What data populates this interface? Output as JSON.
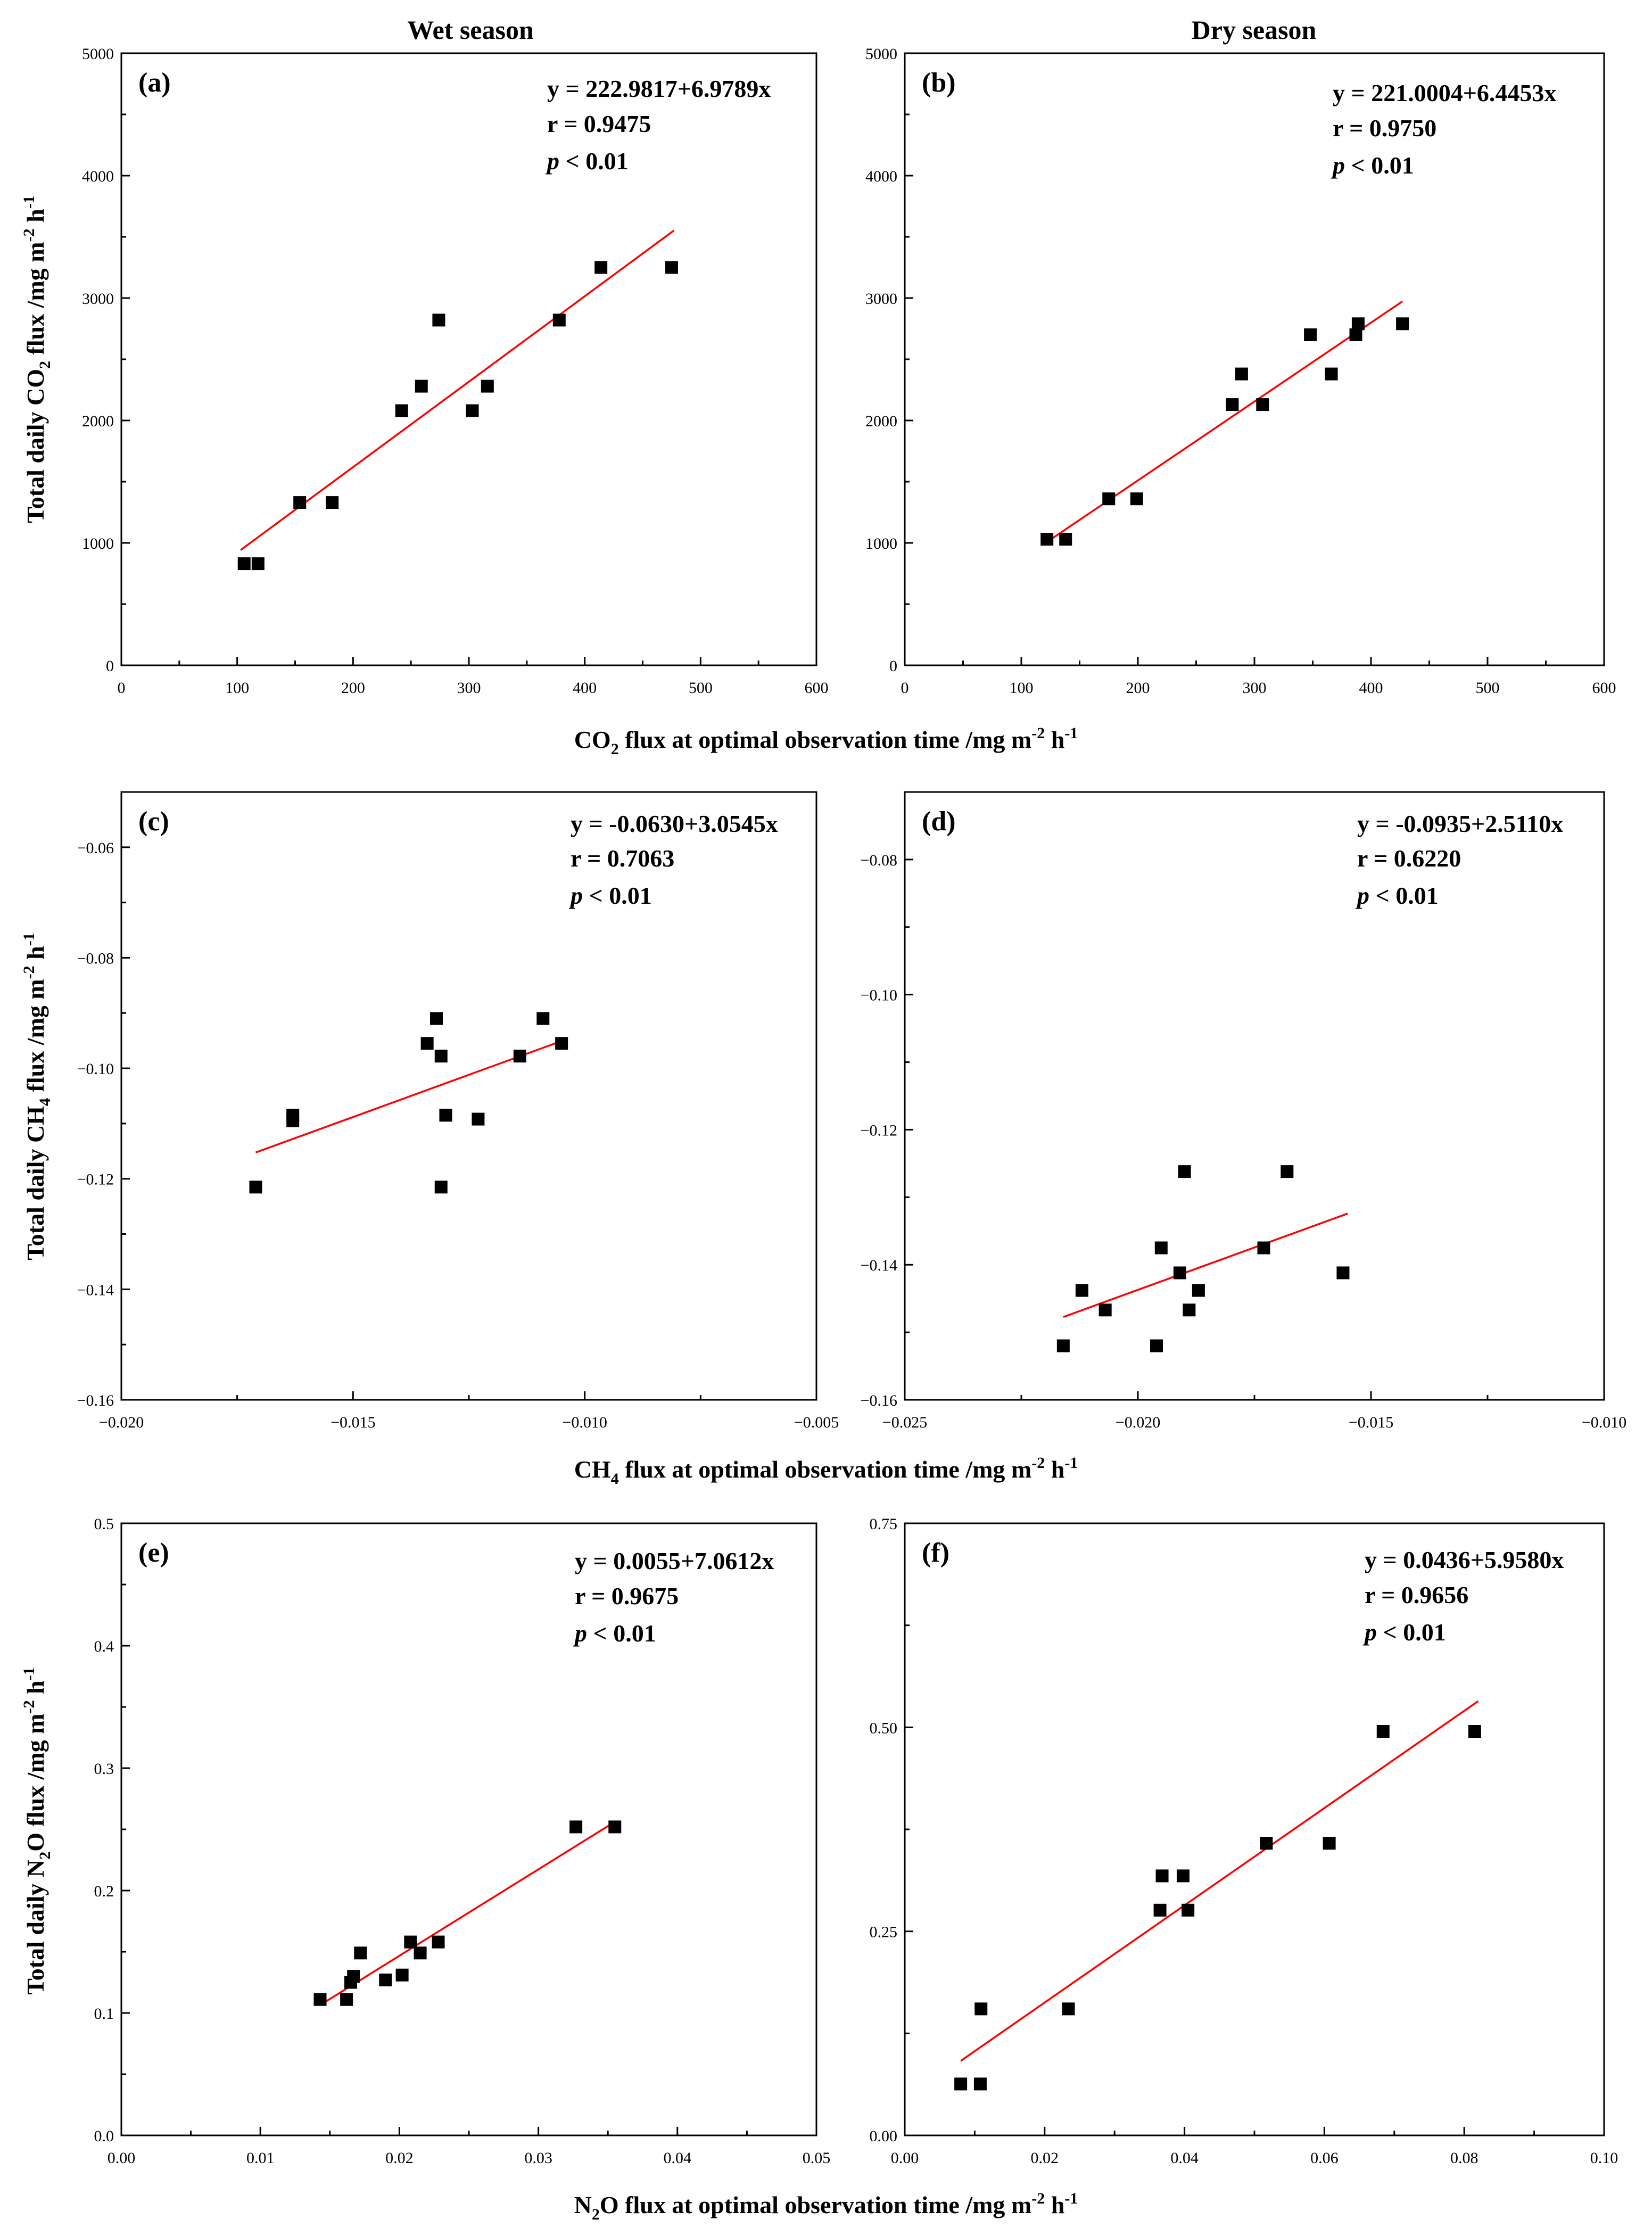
{
  "season_labels": [
    "Wet season",
    "Dry season"
  ],
  "row_xlabels": [
    {
      "pre": "CO",
      "sub": "2",
      "post": " flux at optimal observation time /mg m",
      "sup1": "-2",
      "mid": " h",
      "sup2": "-1"
    },
    {
      "pre": "CH",
      "sub": "4",
      "post": " flux at optimal observation time /mg m",
      "sup1": "-2",
      "mid": " h",
      "sup2": "-1"
    },
    {
      "pre": "N",
      "sub": "2",
      "post": "O flux at optimal observation time /mg m",
      "sup1": "-2",
      "mid": " h",
      "sup2": "-1"
    }
  ],
  "row_ylabels": [
    {
      "pre": "Total daily CO",
      "sub": "2",
      "post": " flux /mg m",
      "sup1": "-2",
      "mid": " h",
      "sup2": "-1"
    },
    {
      "pre": "Total daily CH",
      "sub": "4",
      "post": " flux /mg m",
      "sup1": "-2",
      "mid": " h",
      "sup2": "-1"
    },
    {
      "pre": "Total daily N",
      "sub": "2",
      "post": "O flux /mg m",
      "sup1": "-2",
      "mid": " h",
      "sup2": "-1"
    }
  ],
  "colors": {
    "points": "#000000",
    "fit": "#ff0000",
    "frame": "#000000"
  },
  "chart_data": [
    {
      "type": "scatter",
      "panel": "(a)",
      "season": "Wet season",
      "xlim": [
        0,
        600
      ],
      "ylim": [
        0,
        5000
      ],
      "xticks": [
        0,
        100,
        200,
        300,
        400,
        500,
        600
      ],
      "yticks": [
        0,
        1000,
        2000,
        3000,
        4000,
        5000
      ],
      "xtick_labels": [
        "0",
        "100",
        "200",
        "300",
        "400",
        "500",
        "600"
      ],
      "ytick_labels": [
        "0",
        "1000",
        "2000",
        "3000",
        "4000",
        "5000"
      ],
      "points": [
        [
          106,
          830
        ],
        [
          118,
          830
        ],
        [
          154,
          1330
        ],
        [
          182,
          1330
        ],
        [
          242,
          2080
        ],
        [
          259,
          2280
        ],
        [
          274,
          2820
        ],
        [
          303,
          2080
        ],
        [
          316,
          2280
        ],
        [
          378,
          2820
        ],
        [
          414,
          3250
        ],
        [
          475,
          3250
        ]
      ],
      "fit": {
        "intercept": 222.9817,
        "slope": 6.9789,
        "x_range": [
          103,
          477
        ]
      },
      "equation": "y = 222.9817+6.9789x",
      "r_text": "r = 0.9475",
      "p_italic": "p",
      "p_rest": " < 0.01"
    },
    {
      "type": "scatter",
      "panel": "(b)",
      "season": "Dry season",
      "xlim": [
        0,
        600
      ],
      "ylim": [
        0,
        5000
      ],
      "xticks": [
        0,
        100,
        200,
        300,
        400,
        500,
        600
      ],
      "yticks": [
        0,
        1000,
        2000,
        3000,
        4000,
        5000
      ],
      "xtick_labels": [
        "0",
        "100",
        "200",
        "300",
        "400",
        "500",
        "600"
      ],
      "ytick_labels": [
        "0",
        "1000",
        "2000",
        "3000",
        "4000",
        "5000"
      ],
      "points": [
        [
          122,
          1030
        ],
        [
          138,
          1030
        ],
        [
          175,
          1360
        ],
        [
          199,
          1360
        ],
        [
          281,
          2130
        ],
        [
          289,
          2380
        ],
        [
          307,
          2130
        ],
        [
          348,
          2700
        ],
        [
          366,
          2380
        ],
        [
          387,
          2700
        ],
        [
          389,
          2790
        ],
        [
          427,
          2790
        ]
      ],
      "fit": {
        "intercept": 221.0004,
        "slope": 6.4453,
        "x_range": [
          118,
          427
        ]
      },
      "equation": "y = 221.0004+6.4453x",
      "r_text": "r = 0.9750",
      "p_italic": "p",
      "p_rest": " < 0.01"
    },
    {
      "type": "scatter",
      "panel": "(c)",
      "season": "Wet season",
      "xlim": [
        -0.02,
        -0.005
      ],
      "ylim": [
        -0.16,
        -0.05
      ],
      "xticks": [
        -0.02,
        -0.015,
        -0.01,
        -0.005
      ],
      "yticks": [
        -0.16,
        -0.14,
        -0.12,
        -0.1,
        -0.08,
        -0.06
      ],
      "xtick_labels": [
        "−0.020",
        "−0.015",
        "−0.010",
        "−0.005"
      ],
      "ytick_labels": [
        "−0.16",
        "−0.14",
        "−0.12",
        "−0.10",
        "−0.08",
        "−0.06"
      ],
      "points": [
        [
          -0.0171,
          -0.1215
        ],
        [
          -0.0163,
          -0.1085
        ],
        [
          -0.0163,
          -0.1095
        ],
        [
          -0.0134,
          -0.0955
        ],
        [
          -0.0132,
          -0.091
        ],
        [
          -0.0131,
          -0.0978
        ],
        [
          -0.0131,
          -0.1215
        ],
        [
          -0.013,
          -0.1085
        ],
        [
          -0.0123,
          -0.1092
        ],
        [
          -0.0114,
          -0.0978
        ],
        [
          -0.0109,
          -0.091
        ],
        [
          -0.0105,
          -0.0955
        ]
      ],
      "fit": {
        "intercept": -0.063,
        "slope": 3.0545,
        "x_range": [
          -0.0171,
          -0.0105
        ]
      },
      "equation": "y = -0.0630+3.0545x",
      "r_text": "r = 0.7063",
      "p_italic": "p",
      "p_rest": " < 0.01"
    },
    {
      "type": "scatter",
      "panel": "(d)",
      "season": "Dry season",
      "xlim": [
        -0.025,
        -0.01
      ],
      "ylim": [
        -0.16,
        -0.07
      ],
      "xticks": [
        -0.025,
        -0.02,
        -0.015,
        -0.01
      ],
      "yticks": [
        -0.16,
        -0.14,
        -0.12,
        -0.1,
        -0.08
      ],
      "xtick_labels": [
        "−0.025",
        "−0.020",
        "−0.015",
        "−0.010"
      ],
      "ytick_labels": [
        "−0.16",
        "−0.14",
        "−0.12",
        "−0.10",
        "−0.08"
      ],
      "points": [
        [
          -0.0216,
          -0.152
        ],
        [
          -0.0212,
          -0.1438
        ],
        [
          -0.0207,
          -0.1467
        ],
        [
          -0.0196,
          -0.152
        ],
        [
          -0.0195,
          -0.1375
        ],
        [
          -0.0191,
          -0.1412
        ],
        [
          -0.019,
          -0.1262
        ],
        [
          -0.0189,
          -0.1467
        ],
        [
          -0.0187,
          -0.1438
        ],
        [
          -0.0173,
          -0.1375
        ],
        [
          -0.0168,
          -0.1262
        ],
        [
          -0.0156,
          -0.1412
        ]
      ],
      "fit": {
        "intercept": -0.0935,
        "slope": 2.511,
        "x_range": [
          -0.0216,
          -0.0155
        ]
      },
      "equation": "y = -0.0935+2.5110x",
      "r_text": "r = 0.6220",
      "p_italic": "p",
      "p_rest": " < 0.01"
    },
    {
      "type": "scatter",
      "panel": "(e)",
      "season": "Wet season",
      "xlim": [
        0,
        0.05
      ],
      "ylim": [
        0,
        0.5
      ],
      "xticks": [
        0,
        0.01,
        0.02,
        0.03,
        0.04,
        0.05
      ],
      "yticks": [
        0,
        0.1,
        0.2,
        0.3,
        0.4,
        0.5
      ],
      "xtick_labels": [
        "0.00",
        "0.01",
        "0.02",
        "0.03",
        "0.04",
        "0.05"
      ],
      "ytick_labels": [
        "0.0",
        "0.1",
        "0.2",
        "0.3",
        "0.4",
        "0.5"
      ],
      "points": [
        [
          0.0143,
          0.111
        ],
        [
          0.0162,
          0.111
        ],
        [
          0.0165,
          0.125
        ],
        [
          0.0167,
          0.13
        ],
        [
          0.0172,
          0.149
        ],
        [
          0.019,
          0.127
        ],
        [
          0.0202,
          0.131
        ],
        [
          0.0208,
          0.158
        ],
        [
          0.0215,
          0.149
        ],
        [
          0.0228,
          0.158
        ],
        [
          0.0327,
          0.252
        ],
        [
          0.0355,
          0.252
        ]
      ],
      "fit": {
        "intercept": 0.0055,
        "slope": 7.0612,
        "x_range": [
          0.0143,
          0.0355
        ]
      },
      "equation": "y = 0.0055+7.0612x",
      "r_text": "r = 0.9675",
      "p_italic": "p",
      "p_rest": " < 0.01"
    },
    {
      "type": "scatter",
      "panel": "(f)",
      "season": "Dry season",
      "xlim": [
        0,
        0.1
      ],
      "ylim": [
        0,
        0.75
      ],
      "xticks": [
        0,
        0.02,
        0.04,
        0.06,
        0.08,
        0.1
      ],
      "yticks": [
        0,
        0.25,
        0.5,
        0.75
      ],
      "xtick_labels": [
        "0.00",
        "0.02",
        "0.04",
        "0.06",
        "0.08",
        "0.10"
      ],
      "ytick_labels": [
        "0.00",
        "0.25",
        "0.50",
        "0.75"
      ],
      "points": [
        [
          0.008,
          0.063
        ],
        [
          0.0108,
          0.063
        ],
        [
          0.0109,
          0.155
        ],
        [
          0.0234,
          0.155
        ],
        [
          0.0365,
          0.276
        ],
        [
          0.0368,
          0.318
        ],
        [
          0.0398,
          0.318
        ],
        [
          0.0405,
          0.276
        ],
        [
          0.0517,
          0.358
        ],
        [
          0.0607,
          0.358
        ],
        [
          0.0684,
          0.495
        ],
        [
          0.0815,
          0.495
        ]
      ],
      "fit": {
        "intercept": 0.0436,
        "slope": 5.958,
        "x_range": [
          0.008,
          0.082
        ]
      },
      "equation": "y = 0.0436+5.9580x",
      "r_text": "r = 0.9656",
      "p_italic": "p",
      "p_rest": " < 0.01"
    }
  ]
}
